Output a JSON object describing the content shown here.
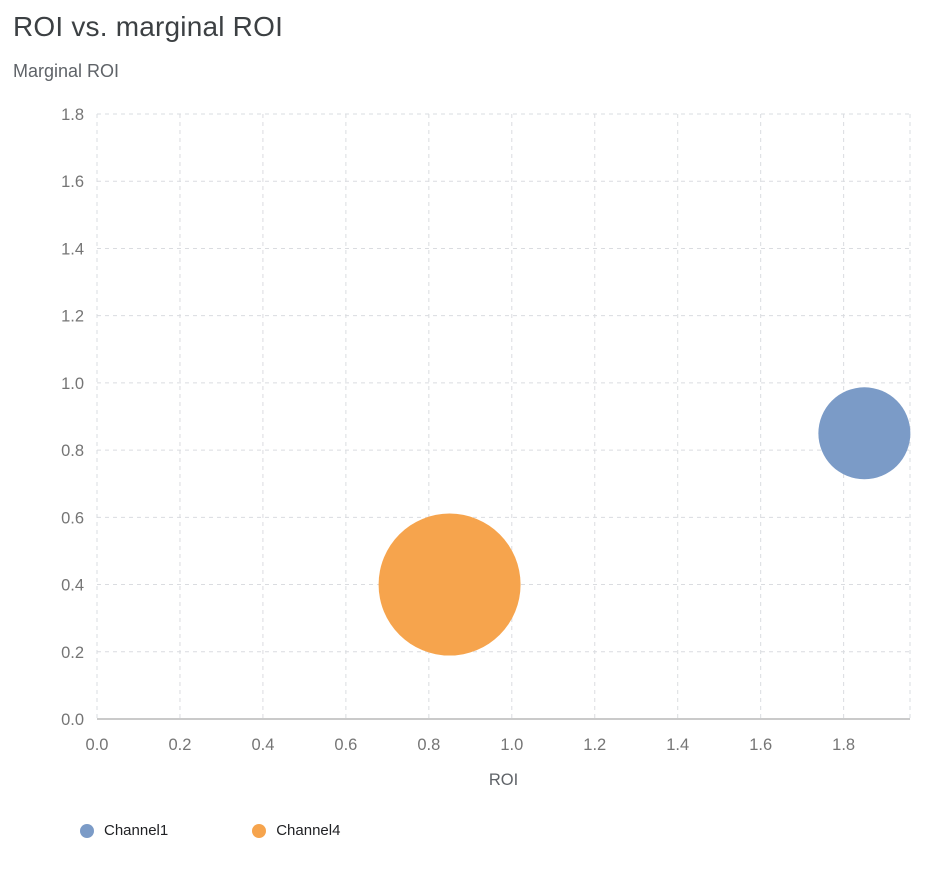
{
  "page": {
    "title": "ROI vs. marginal ROI"
  },
  "chart_data": {
    "type": "scatter",
    "subtype": "bubble",
    "title": "ROI vs. marginal ROI",
    "xlabel": "ROI",
    "ylabel": "Marginal ROI",
    "xlim": [
      0,
      1.96
    ],
    "ylim": [
      0,
      1.8
    ],
    "xticks": [
      0,
      0.2,
      0.4,
      0.6,
      0.8,
      1.0,
      1.2,
      1.4,
      1.6,
      1.8
    ],
    "yticks": [
      0,
      0.2,
      0.4,
      0.6,
      0.8,
      1.0,
      1.2,
      1.4,
      1.6,
      1.8
    ],
    "tick_format": "one-decimal",
    "grid": "dashed",
    "legend_position": "bottom-left",
    "series": [
      {
        "name": "Channel1",
        "color": "#7b9bc7",
        "points": [
          {
            "x": 1.85,
            "y": 0.85,
            "radius_px": 46
          }
        ]
      },
      {
        "name": "Channel4",
        "color": "#f6a44d",
        "points": [
          {
            "x": 0.85,
            "y": 0.4,
            "radius_px": 71
          }
        ]
      }
    ]
  }
}
